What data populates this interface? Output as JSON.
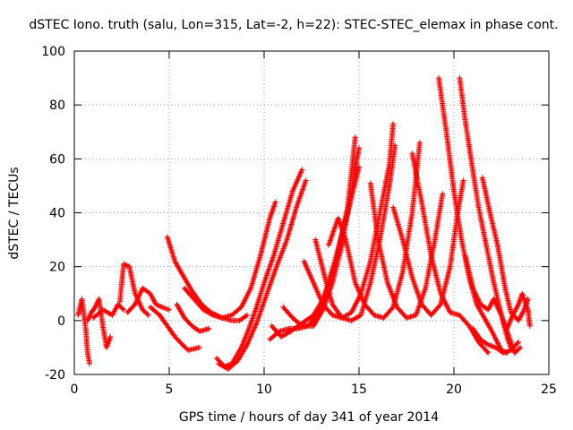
{
  "chart_data": {
    "type": "scatter",
    "title": "dSTEC Iono. truth (salu, Lon=315, Lat=-2, h=22): STEC-STEC_elemax in phase cont.",
    "xlabel": "GPS time / hours of day 341 of year 2014",
    "ylabel": "dSTEC  / TECUs",
    "xlim": [
      0,
      25
    ],
    "ylim": [
      -20,
      100
    ],
    "xticks": [
      0,
      5,
      10,
      15,
      20,
      25
    ],
    "yticks": [
      -20,
      0,
      20,
      40,
      60,
      80,
      100
    ],
    "xtick_labels": [
      "0",
      "5",
      "10",
      "15",
      "20",
      "25"
    ],
    "ytick_labels": [
      "-20",
      "0",
      "20",
      "40",
      "60",
      "80",
      "100"
    ],
    "grid": true,
    "marker": "+",
    "color": "#ff0000",
    "arcs": [
      {
        "points": [
          [
            0.2,
            2
          ],
          [
            0.4,
            8
          ],
          [
            0.6,
            -3
          ],
          [
            0.7,
            -12
          ],
          [
            0.8,
            -16
          ]
        ]
      },
      {
        "points": [
          [
            0.7,
            0
          ],
          [
            0.9,
            3
          ],
          [
            1.1,
            5
          ],
          [
            1.3,
            8
          ],
          [
            1.5,
            -2
          ],
          [
            1.7,
            -10
          ],
          [
            1.9,
            -6
          ]
        ]
      },
      {
        "points": [
          [
            1.0,
            1
          ],
          [
            1.5,
            4
          ],
          [
            2.0,
            2
          ],
          [
            2.3,
            6
          ],
          [
            2.6,
            4
          ]
        ]
      },
      {
        "points": [
          [
            2.4,
            7
          ],
          [
            2.6,
            21
          ],
          [
            2.9,
            20
          ],
          [
            3.2,
            10
          ],
          [
            3.6,
            4
          ],
          [
            3.9,
            2
          ]
        ]
      },
      {
        "points": [
          [
            2.8,
            3
          ],
          [
            3.2,
            6
          ],
          [
            3.6,
            12
          ],
          [
            4.0,
            10
          ],
          [
            4.3,
            6
          ],
          [
            4.6,
            5
          ],
          [
            5.0,
            4
          ]
        ]
      },
      {
        "points": [
          [
            4.0,
            5
          ],
          [
            4.5,
            2
          ],
          [
            5.0,
            -3
          ],
          [
            5.3,
            -6
          ],
          [
            5.7,
            -9
          ],
          [
            6.0,
            -11
          ],
          [
            6.6,
            -10
          ]
        ]
      },
      {
        "points": [
          [
            4.9,
            31
          ],
          [
            5.3,
            22
          ],
          [
            5.7,
            17
          ],
          [
            6.2,
            11
          ],
          [
            6.7,
            6
          ],
          [
            7.2,
            3
          ],
          [
            7.8,
            1
          ],
          [
            8.3,
            0
          ],
          [
            8.7,
            0
          ],
          [
            9.1,
            2
          ]
        ]
      },
      {
        "points": [
          [
            5.4,
            6
          ],
          [
            5.8,
            1
          ],
          [
            6.2,
            -2
          ],
          [
            6.6,
            -4
          ],
          [
            7.1,
            -3
          ]
        ]
      },
      {
        "points": [
          [
            5.8,
            12
          ],
          [
            6.3,
            8
          ],
          [
            6.8,
            4
          ],
          [
            7.3,
            2
          ],
          [
            7.8,
            1
          ],
          [
            8.3,
            2
          ],
          [
            8.8,
            5
          ],
          [
            9.3,
            12
          ],
          [
            9.8,
            24
          ],
          [
            10.3,
            38
          ],
          [
            10.6,
            44
          ]
        ]
      },
      {
        "points": [
          [
            7.5,
            -14
          ],
          [
            7.9,
            -17
          ],
          [
            8.3,
            -16
          ],
          [
            8.8,
            -10
          ],
          [
            9.2,
            -3
          ],
          [
            9.6,
            5
          ],
          [
            10.0,
            14
          ],
          [
            10.5,
            24
          ],
          [
            11.0,
            36
          ],
          [
            11.5,
            48
          ],
          [
            12.0,
            56
          ]
        ]
      },
      {
        "points": [
          [
            7.6,
            -16
          ],
          [
            8.1,
            -18
          ],
          [
            8.6,
            -15
          ],
          [
            9.1,
            -9
          ],
          [
            9.6,
            -1
          ],
          [
            10.1,
            9
          ],
          [
            10.6,
            19
          ],
          [
            11.2,
            30
          ],
          [
            11.7,
            42
          ],
          [
            12.2,
            52
          ]
        ]
      },
      {
        "points": [
          [
            10.4,
            -2
          ],
          [
            10.9,
            -6
          ],
          [
            11.4,
            -4
          ],
          [
            12.0,
            -1
          ],
          [
            12.6,
            2
          ],
          [
            13.2,
            9
          ],
          [
            13.8,
            22
          ],
          [
            14.4,
            42
          ],
          [
            14.8,
            68
          ]
        ]
      },
      {
        "points": [
          [
            10.3,
            -7
          ],
          [
            10.8,
            -4
          ],
          [
            11.3,
            -3
          ],
          [
            11.8,
            -3
          ],
          [
            12.3,
            -2
          ],
          [
            12.8,
            2
          ],
          [
            13.3,
            12
          ],
          [
            13.8,
            24
          ],
          [
            14.4,
            40
          ],
          [
            15.0,
            57
          ]
        ]
      },
      {
        "points": [
          [
            11.0,
            5
          ],
          [
            11.5,
            1
          ],
          [
            12.0,
            -2
          ],
          [
            12.6,
            -2
          ],
          [
            13.1,
            4
          ],
          [
            13.6,
            14
          ],
          [
            14.1,
            28
          ],
          [
            14.6,
            48
          ],
          [
            15.0,
            64
          ]
        ]
      },
      {
        "points": [
          [
            12.1,
            22
          ],
          [
            12.6,
            14
          ],
          [
            13.1,
            6
          ],
          [
            13.6,
            2
          ],
          [
            14.1,
            1
          ],
          [
            14.6,
            3
          ],
          [
            15.1,
            10
          ],
          [
            15.6,
            22
          ],
          [
            16.1,
            40
          ],
          [
            16.6,
            58
          ],
          [
            16.8,
            73
          ]
        ]
      },
      {
        "points": [
          [
            12.7,
            30
          ],
          [
            13.2,
            16
          ],
          [
            13.6,
            6
          ],
          [
            14.1,
            1
          ],
          [
            14.6,
            0
          ],
          [
            15.1,
            2
          ],
          [
            15.6,
            14
          ],
          [
            16.1,
            30
          ],
          [
            16.6,
            50
          ],
          [
            16.9,
            65
          ]
        ]
      },
      {
        "points": [
          [
            13.4,
            28
          ],
          [
            13.9,
            38
          ],
          [
            14.3,
            30
          ],
          [
            14.8,
            14
          ],
          [
            15.3,
            6
          ],
          [
            15.8,
            2
          ],
          [
            16.3,
            1
          ],
          [
            16.8,
            5
          ],
          [
            17.3,
            18
          ],
          [
            17.8,
            40
          ],
          [
            18.2,
            66
          ]
        ]
      },
      {
        "points": [
          [
            15.6,
            51
          ],
          [
            16.0,
            30
          ],
          [
            16.5,
            14
          ],
          [
            17.0,
            5
          ],
          [
            17.5,
            1
          ],
          [
            18.0,
            2
          ],
          [
            18.5,
            12
          ],
          [
            19.0,
            30
          ],
          [
            19.4,
            47
          ]
        ]
      },
      {
        "points": [
          [
            16.8,
            42
          ],
          [
            17.3,
            30
          ],
          [
            17.8,
            16
          ],
          [
            18.3,
            6
          ],
          [
            18.8,
            2
          ],
          [
            19.3,
            6
          ],
          [
            19.8,
            20
          ],
          [
            20.2,
            40
          ],
          [
            20.5,
            52
          ]
        ]
      },
      {
        "points": [
          [
            17.8,
            62
          ],
          [
            18.3,
            44
          ],
          [
            18.8,
            24
          ],
          [
            19.3,
            10
          ],
          [
            19.8,
            3
          ],
          [
            20.3,
            2
          ],
          [
            20.8,
            -2
          ],
          [
            21.3,
            -8
          ],
          [
            21.8,
            -12
          ]
        ]
      },
      {
        "points": [
          [
            19.2,
            90
          ],
          [
            19.6,
            70
          ],
          [
            20.0,
            48
          ],
          [
            20.4,
            30
          ],
          [
            20.8,
            16
          ],
          [
            21.2,
            6
          ],
          [
            21.6,
            1
          ],
          [
            22.0,
            -4
          ],
          [
            22.5,
            -11
          ],
          [
            22.8,
            -12
          ]
        ]
      },
      {
        "points": [
          [
            20.3,
            90
          ],
          [
            20.6,
            74
          ],
          [
            20.9,
            60
          ],
          [
            21.3,
            42
          ],
          [
            21.7,
            28
          ],
          [
            22.1,
            14
          ],
          [
            22.5,
            2
          ],
          [
            22.8,
            -6
          ],
          [
            23.0,
            -10
          ]
        ]
      },
      {
        "points": [
          [
            20.6,
            24
          ],
          [
            21.0,
            12
          ],
          [
            21.4,
            6
          ],
          [
            21.8,
            4
          ],
          [
            22.1,
            8
          ],
          [
            22.5,
            2
          ],
          [
            22.9,
            -6
          ],
          [
            23.2,
            -12
          ],
          [
            23.5,
            -10
          ]
        ]
      },
      {
        "points": [
          [
            21.5,
            53
          ],
          [
            21.9,
            40
          ],
          [
            22.3,
            28
          ],
          [
            22.7,
            12
          ],
          [
            23.0,
            3
          ],
          [
            23.4,
            0
          ],
          [
            23.7,
            4
          ],
          [
            23.9,
            8
          ]
        ]
      },
      {
        "points": [
          [
            22.8,
            -3
          ],
          [
            23.1,
            2
          ],
          [
            23.4,
            6
          ],
          [
            23.6,
            10
          ],
          [
            23.9,
            4
          ],
          [
            24.0,
            -2
          ]
        ]
      },
      {
        "points": [
          [
            21.0,
            -3
          ],
          [
            21.4,
            -7
          ],
          [
            21.8,
            -9
          ],
          [
            22.2,
            -10
          ],
          [
            22.6,
            -12
          ],
          [
            23.0,
            -11
          ],
          [
            23.4,
            -8
          ]
        ]
      }
    ]
  }
}
